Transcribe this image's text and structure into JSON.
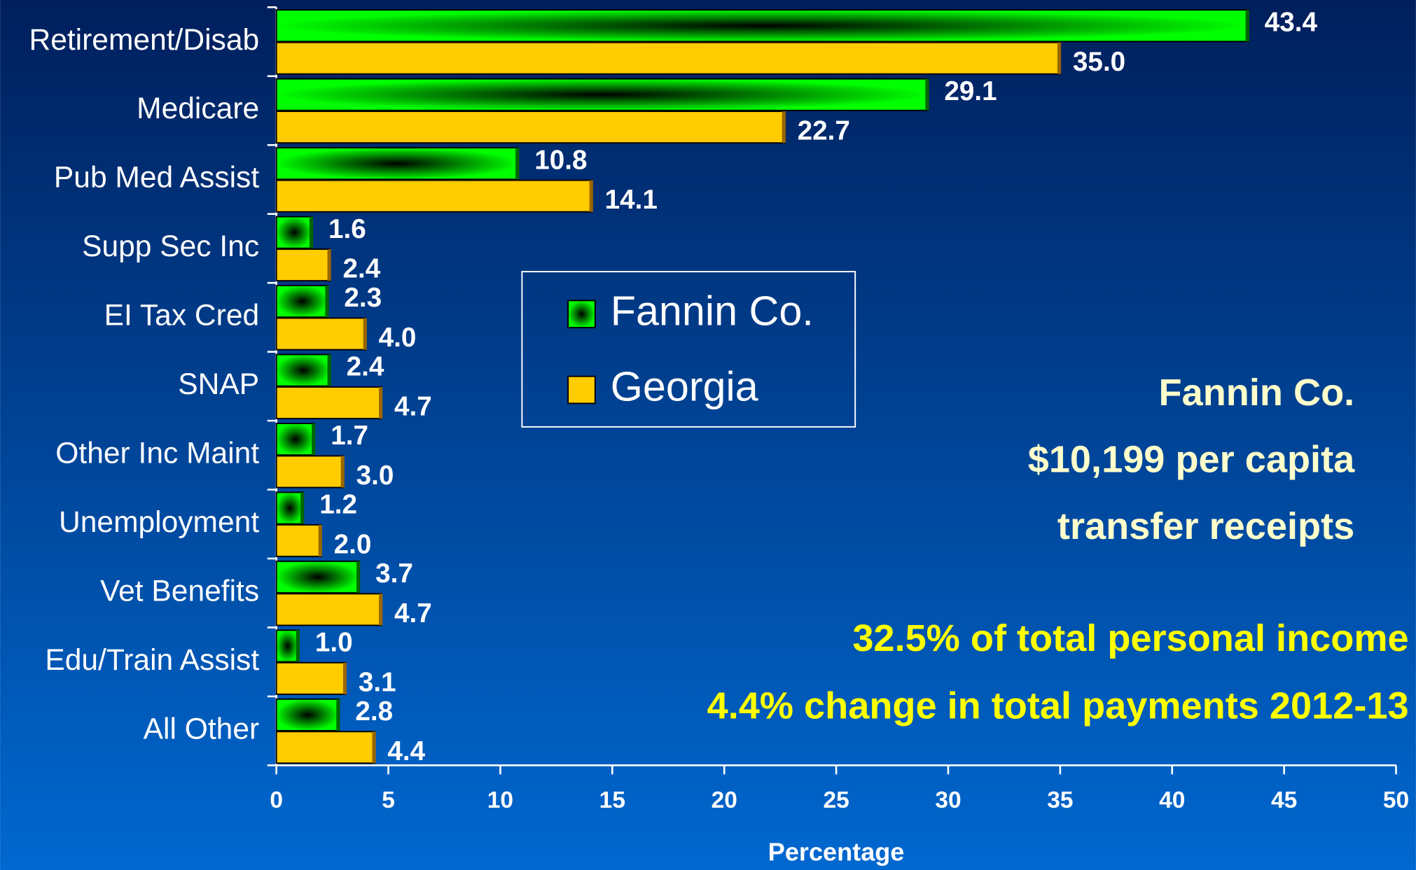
{
  "chart_data": {
    "type": "bar",
    "orientation": "horizontal",
    "categories": [
      "Retirement/Disab",
      "Medicare",
      "Pub Med Assist",
      "Supp Sec Inc",
      "EI Tax Cred",
      "SNAP",
      "Other Inc Maint",
      "Unemployment",
      "Vet Benefits",
      "Edu/Train Assist",
      "All Other"
    ],
    "series": [
      {
        "name": "Fannin Co.",
        "color": "#00ff00",
        "values": [
          43.4,
          29.1,
          10.8,
          1.6,
          2.3,
          2.4,
          1.7,
          1.2,
          3.7,
          1.0,
          2.8
        ],
        "value_labels": [
          "43.4",
          "29.1",
          "10.8",
          "1.6",
          "2.3",
          "2.4",
          "1.7",
          "1.2",
          "3.7",
          "1.0",
          "2.8"
        ]
      },
      {
        "name": "Georgia",
        "color": "#ffcc00",
        "values": [
          35.0,
          22.7,
          14.1,
          2.4,
          4.0,
          4.7,
          3.0,
          2.0,
          4.7,
          3.1,
          4.4
        ],
        "value_labels": [
          "35.0",
          "22.7",
          "14.1",
          "2.4",
          "4.0",
          "4.7",
          "3.0",
          "2.0",
          "4.7",
          "3.1",
          "4.4"
        ]
      }
    ],
    "xlabel": "Percentage",
    "xlim": [
      0,
      50
    ],
    "xticks": [
      0,
      5,
      10,
      15,
      20,
      25,
      30,
      35,
      40,
      45,
      50
    ],
    "legend": "center",
    "annotations": [
      "Fannin Co.",
      "$10,199 per capita",
      "transfer receipts",
      "32.5% of total personal income",
      "4.4% change in total payments 2012-13"
    ]
  }
}
